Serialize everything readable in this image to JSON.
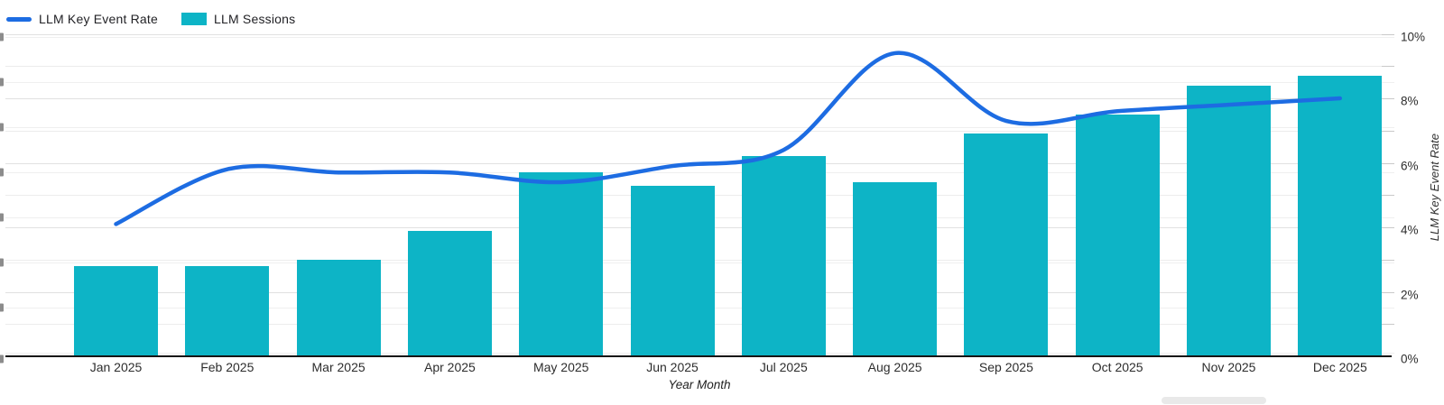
{
  "legend": [
    {
      "label": "LLM Key Event Rate",
      "type": "line",
      "color": "#1d6ce2"
    },
    {
      "label": "LLM Sessions",
      "type": "bar",
      "color": "#0db4c6"
    }
  ],
  "chart_data": {
    "type": "combo-bar-line",
    "categories": [
      "Jan 2025",
      "Feb 2025",
      "Mar 2025",
      "Apr 2025",
      "May 2025",
      "Jun 2025",
      "Jul 2025",
      "Aug 2025",
      "Sep 2025",
      "Oct 2025",
      "Nov 2025",
      "Dec 2025"
    ],
    "series": [
      {
        "name": "LLM Sessions",
        "type": "bar",
        "axis": "left",
        "color": "#0db4c6",
        "values_pct_of_right_axis": [
          2.8,
          2.8,
          3.0,
          3.9,
          5.7,
          5.3,
          6.2,
          5.4,
          6.9,
          7.5,
          8.4,
          8.7
        ]
      },
      {
        "name": "LLM Key Event Rate",
        "type": "line",
        "axis": "right",
        "color": "#1d6ce2",
        "values_pct": [
          4.1,
          5.8,
          5.7,
          5.7,
          5.4,
          5.9,
          6.4,
          9.4,
          7.3,
          7.6,
          7.8,
          8.0
        ]
      }
    ],
    "xlabel": "Year Month",
    "right_axis": {
      "label": "LLM Key Event Rate",
      "ticks": [
        "0%",
        "2%",
        "4%",
        "6%",
        "8%",
        "10%"
      ],
      "range": [
        0,
        10
      ],
      "minor_tick_every_pct": 1
    },
    "left_axis": {
      "labels_cropped": true
    },
    "grid": true,
    "legend_position": "top-left"
  }
}
